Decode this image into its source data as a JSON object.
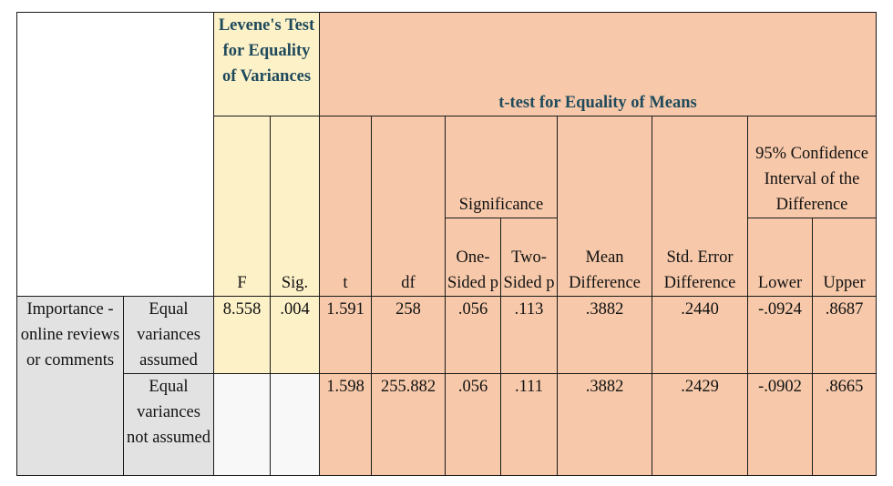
{
  "header": {
    "levene": "Levene's Test for Equality of Variances",
    "ttest": "t-test for Equality of Means",
    "ci_group": "95% Confidence Interval of the Difference",
    "significance": "Significance"
  },
  "columns": {
    "F": "F",
    "Sig": "Sig.",
    "t": "t",
    "df": "df",
    "one_sided": "One-Sided p",
    "two_sided": "Two-Sided p",
    "mean_diff": "Mean Difference",
    "se_diff": "Std. Error Difference",
    "lower": "Lower",
    "upper": "Upper"
  },
  "variable": "Importance - online reviews or comments",
  "rows": [
    {
      "label": "Equal variances assumed",
      "F": "8.558",
      "Sig": ".004",
      "t": "1.591",
      "df": "258",
      "one_sided": ".056",
      "two_sided": ".113",
      "mean_diff": ".3882",
      "se_diff": ".2440",
      "lower": "-.0924",
      "upper": ".8687"
    },
    {
      "label": "Equal variances not assumed",
      "F": "",
      "Sig": "",
      "t": "1.598",
      "df": "255.882",
      "one_sided": ".056",
      "two_sided": ".111",
      "mean_diff": ".3882",
      "se_diff": ".2429",
      "lower": "-.0902",
      "upper": ".8665"
    }
  ],
  "colors": {
    "yellow": "#fdf1c8",
    "peach": "#f7c9aa",
    "grey": "#e2e2e2",
    "header_text": "#1f4a5c"
  }
}
